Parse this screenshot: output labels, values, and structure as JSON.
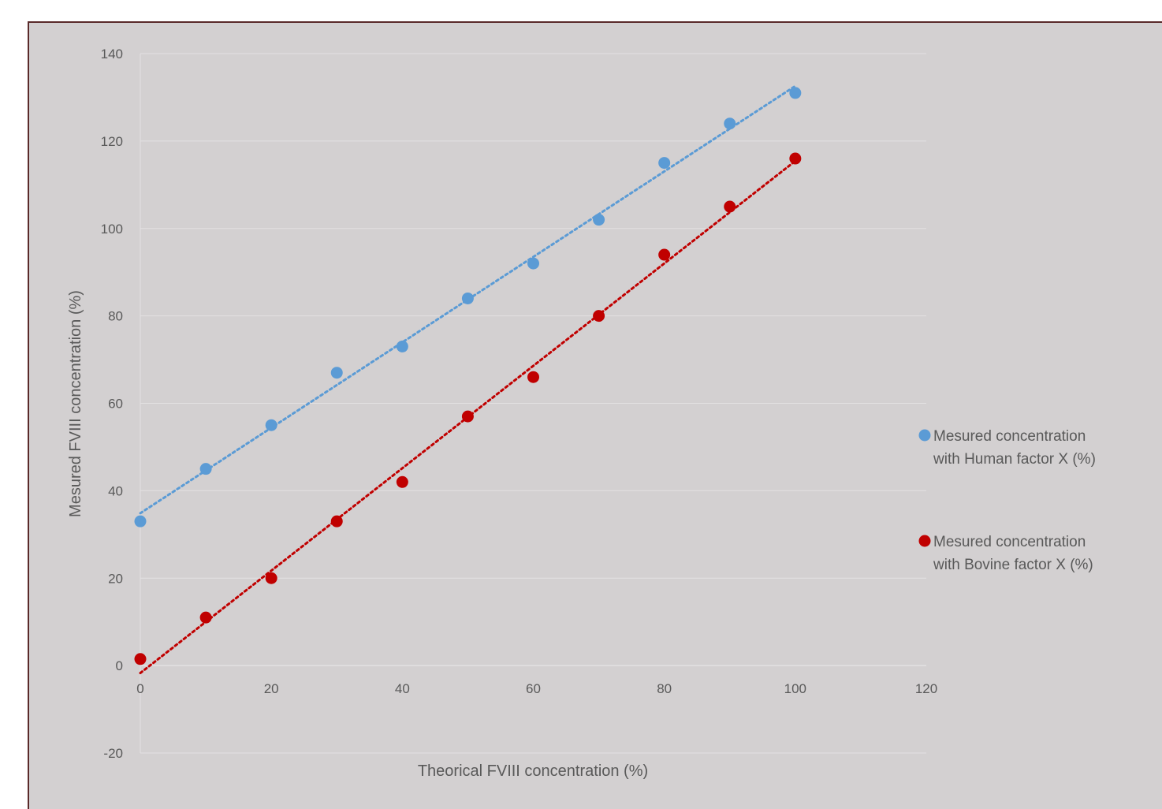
{
  "chart_data": {
    "type": "scatter",
    "title": "",
    "xlabel": "Theorical FVIII concentration  (%)",
    "ylabel": "Mesured FVIII concentration (%)",
    "xlim": [
      0,
      120
    ],
    "ylim": [
      -20,
      140
    ],
    "x_ticks": [
      0,
      20,
      40,
      60,
      80,
      100,
      120
    ],
    "y_ticks": [
      -20,
      0,
      20,
      40,
      60,
      80,
      100,
      120,
      140
    ],
    "grid": "horizontal",
    "legend_position": "right",
    "series": [
      {
        "legend_lines": [
          "Mesured concentration",
          "with Human factor X (%)"
        ],
        "color": "#5b9bd5",
        "trendline": "linear dotted",
        "x": [
          0,
          10,
          20,
          30,
          40,
          50,
          60,
          70,
          80,
          90,
          100
        ],
        "y": [
          33,
          45,
          55,
          67,
          73,
          84,
          92,
          102,
          115,
          124,
          131
        ]
      },
      {
        "legend_lines": [
          "Mesured concentration",
          "with Bovine factor X (%)"
        ],
        "color": "#c00000",
        "trendline": "linear dotted",
        "x": [
          0,
          10,
          20,
          30,
          40,
          50,
          60,
          70,
          80,
          90,
          100
        ],
        "y": [
          1.5,
          11,
          20,
          33,
          42,
          57,
          66,
          80,
          94,
          105,
          116
        ]
      }
    ]
  }
}
